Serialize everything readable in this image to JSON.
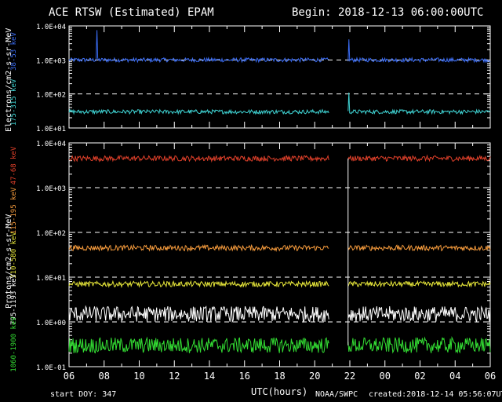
{
  "header": {
    "title": "ACE RTSW (Estimated) EPAM",
    "begin": "Begin: 2018-12-13 06:00:00UTC"
  },
  "footer": {
    "start_doy": "start DOY:  347",
    "xlabel": "UTC(hours)",
    "source": "NOAA/SWPC",
    "created": "created:2018-12-14 05:56:07UTC"
  },
  "chart_data": [
    {
      "type": "line",
      "panel": "electrons",
      "ylabel": "Electrons/cm2-s-sr-MeV",
      "yscale": "log",
      "ylim": [
        10,
        10000
      ],
      "xlim": [
        6,
        30
      ],
      "x_ticks": [
        "06",
        "08",
        "10",
        "12",
        "14",
        "16",
        "18",
        "20",
        "22",
        "00",
        "02",
        "04",
        "06"
      ],
      "y_ticks": [
        "1.0E+01",
        "1.0E+02",
        "1.0E+03",
        "1.0E+04"
      ],
      "gap": [
        20.8,
        21.9
      ],
      "series": [
        {
          "name": "38-53 keV",
          "color": "#3a6cf4",
          "base": 1000,
          "spikes": [
            {
              "x": 7.6,
              "y": 7500
            },
            {
              "x": 21.95,
              "y": 4000
            }
          ]
        },
        {
          "name": "175-315 keV",
          "color": "#3fd3d3",
          "base": 30,
          "spikes": [
            {
              "x": 21.95,
              "y": 110
            }
          ]
        }
      ]
    },
    {
      "type": "line",
      "panel": "protons",
      "ylabel": "Protons/cm2-s-sr-MeV",
      "yscale": "log",
      "ylim": [
        0.1,
        10000
      ],
      "xlim": [
        6,
        30
      ],
      "x_ticks": [
        "06",
        "08",
        "10",
        "12",
        "14",
        "16",
        "18",
        "20",
        "22",
        "00",
        "02",
        "04",
        "06"
      ],
      "y_ticks": [
        "1.0E-01",
        "1.0E+00",
        "1.0E+01",
        "1.0E+02",
        "1.0E+03",
        "1.0E+04"
      ],
      "gap": [
        20.8,
        21.9
      ],
      "series": [
        {
          "name": "47-68 keV",
          "color": "#e0402a",
          "base": 4500
        },
        {
          "name": "115-195 keV",
          "color": "#f49a3c",
          "base": 45
        },
        {
          "name": "310-580 keV",
          "color": "#e8e83a",
          "base": 7
        },
        {
          "name": "795-1193 keV",
          "color": "#ffffff",
          "base": 1.5
        },
        {
          "name": "1060-1900 keV",
          "color": "#33dd33",
          "base": 0.3
        }
      ]
    }
  ]
}
